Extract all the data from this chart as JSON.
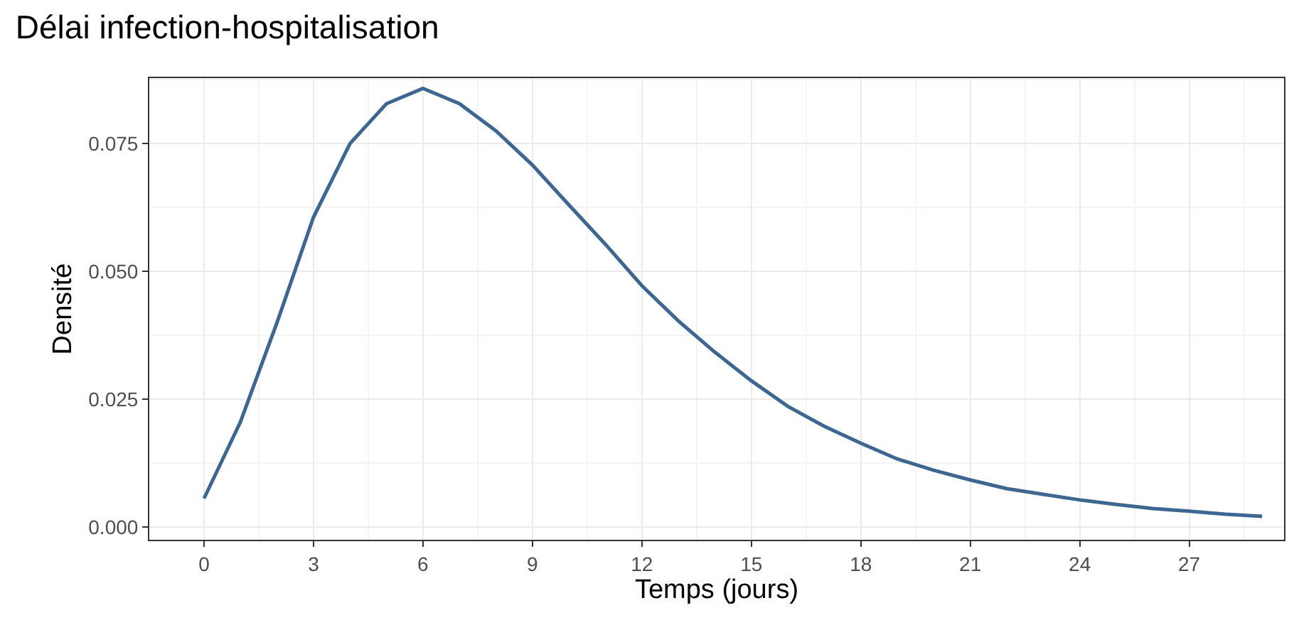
{
  "chart_data": {
    "type": "line",
    "title": "Délai infection-hospitalisation",
    "xlabel": "Temps (jours)",
    "ylabel": "Densité",
    "x": [
      0,
      1,
      2,
      3,
      4,
      5,
      6,
      7,
      8,
      9,
      10,
      11,
      12,
      13,
      14,
      15,
      16,
      17,
      18,
      19,
      20,
      21,
      22,
      23,
      24,
      25,
      26,
      27,
      28,
      29
    ],
    "series": [
      {
        "color": "#3d6790",
        "values": [
          0.0056,
          0.0206,
          0.04,
          0.0606,
          0.075,
          0.0828,
          0.0858,
          0.0828,
          0.0775,
          0.0708,
          0.063,
          0.0553,
          0.0472,
          0.0403,
          0.0342,
          0.0286,
          0.0236,
          0.0197,
          0.0164,
          0.0133,
          0.0111,
          0.0092,
          0.0075,
          0.0064,
          0.0053,
          0.0044,
          0.0036,
          0.0031,
          0.0025,
          0.0021
        ]
      }
    ],
    "xlim": [
      -1.5,
      29.6
    ],
    "ylim": [
      -0.0025,
      0.0878
    ],
    "xticks": [
      0,
      3,
      6,
      9,
      12,
      15,
      18,
      21,
      24,
      27
    ],
    "yticks": [
      {
        "value": 0,
        "label": "0.000"
      },
      {
        "value": 0.025,
        "label": "0.025"
      },
      {
        "value": 0.05,
        "label": "0.050"
      },
      {
        "value": 0.075,
        "label": "0.075"
      }
    ],
    "grid": true,
    "marker": "none",
    "line_style": "solid"
  }
}
